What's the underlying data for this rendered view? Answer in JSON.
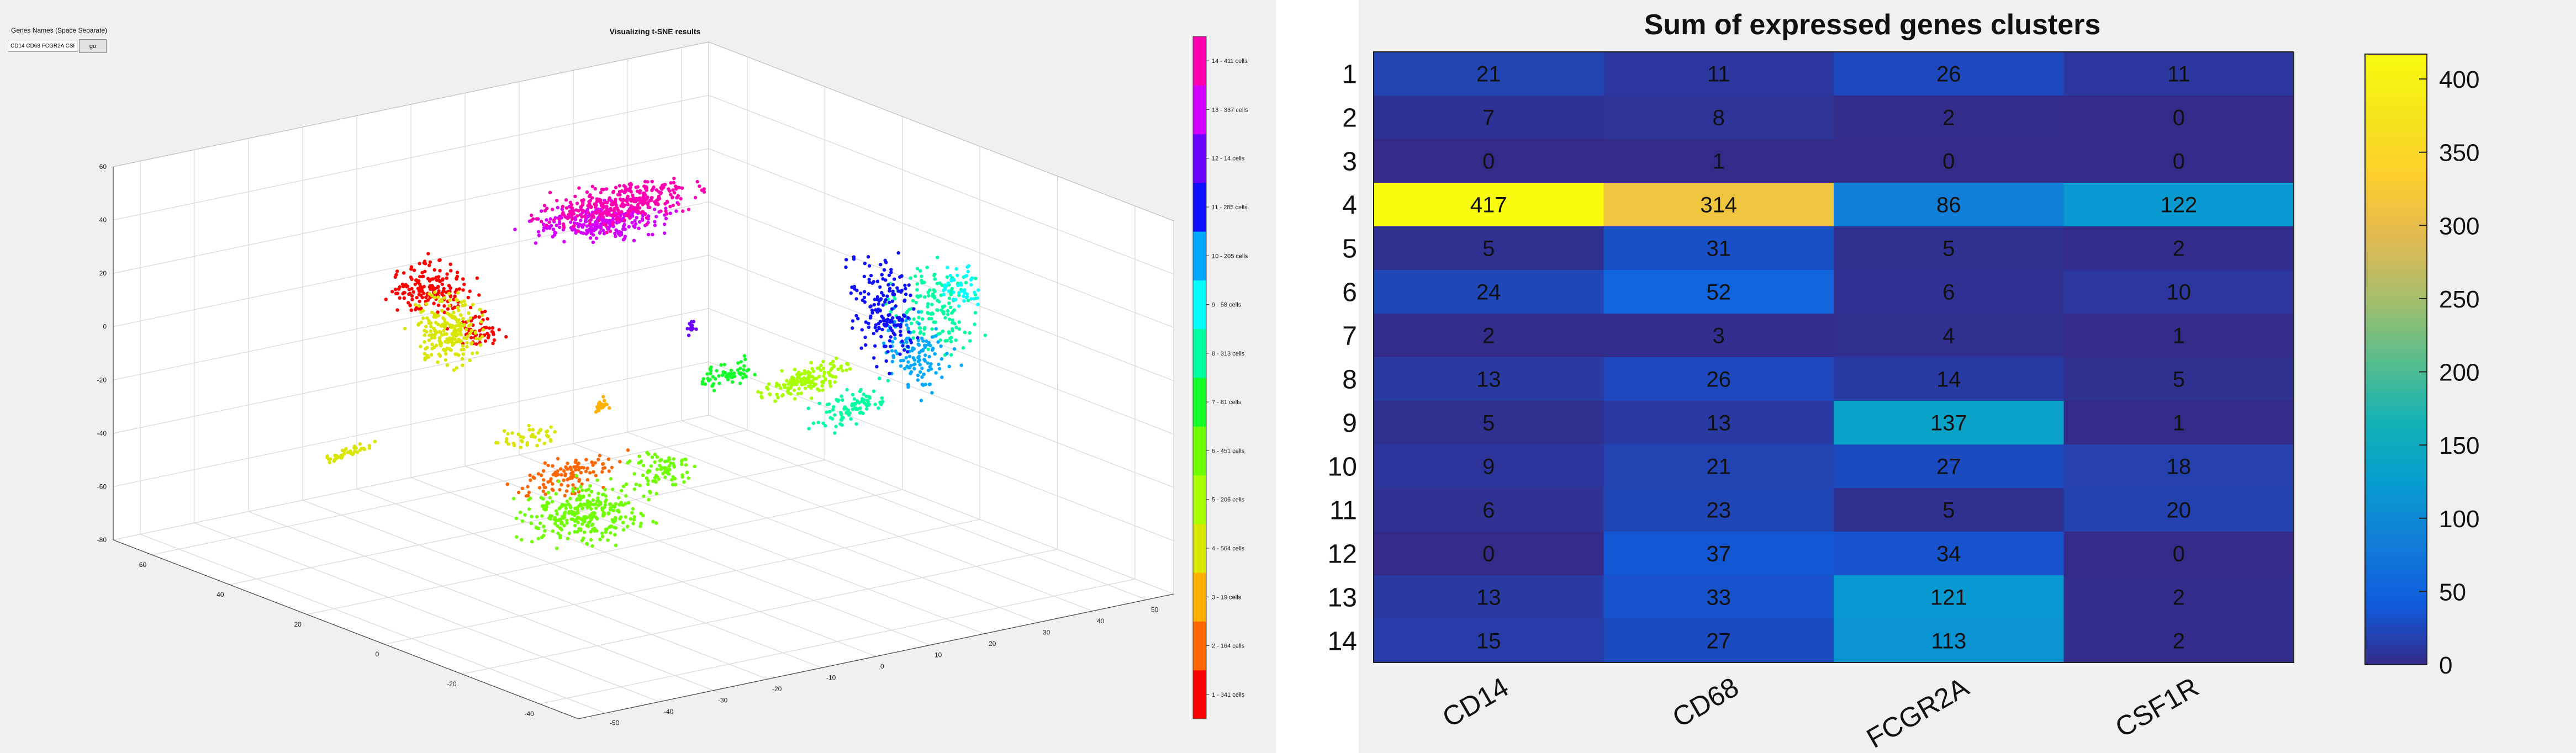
{
  "controls": {
    "gene_names_label": "Genes Names (Space Separate)",
    "gene_input_value": "CD14 CD68 FCGR2A CSF",
    "go_label": "go"
  },
  "chart_data": [
    {
      "type": "scatter",
      "projection": "3d",
      "title": "Visualizing t-SNE results",
      "grid": true,
      "xlim": [
        -60,
        60
      ],
      "ylim": [
        -50,
        50
      ],
      "zlim": [
        -80,
        60
      ],
      "z_ticks": [
        -80,
        -60,
        -40,
        -20,
        0,
        20,
        40,
        60
      ],
      "y_ticks": [
        -40,
        -20,
        0,
        20,
        40,
        60
      ],
      "x_ticks": [
        -50,
        -40,
        -30,
        -20,
        -10,
        0,
        10,
        20,
        30,
        40,
        50
      ],
      "colorbar_labels": [
        "1 - 341 cells",
        "2 - 164 cells",
        "3 - 19 cells",
        "4 - 564 cells",
        "5 - 206 cells",
        "6 - 451 cells",
        "7 - 81 cells",
        "8 - 313 cells",
        "9 - 58 cells",
        "10 - 205 cells",
        "11 - 285 cells",
        "12 - 14 cells",
        "13 - 337 cells",
        "14 - 411 cells"
      ],
      "cluster_colors": [
        "#ff0000",
        "#ff6600",
        "#ffb000",
        "#d8e600",
        "#a8ff00",
        "#70ff00",
        "#14ff2a",
        "#00ffa0",
        "#00ffff",
        "#00a8ff",
        "#1010ff",
        "#6a00ff",
        "#d400ff",
        "#ff00b0"
      ]
    },
    {
      "type": "heatmap",
      "title": "Sum of expressed genes clusters",
      "x_labels": [
        "CD14",
        "CD68",
        "FCGR2A",
        "CSF1R"
      ],
      "y_labels": [
        "1",
        "2",
        "3",
        "4",
        "5",
        "6",
        "7",
        "8",
        "9",
        "10",
        "11",
        "12",
        "13",
        "14"
      ],
      "values": [
        [
          21,
          11,
          26,
          11
        ],
        [
          7,
          8,
          2,
          0
        ],
        [
          0,
          1,
          0,
          0
        ],
        [
          417,
          314,
          86,
          122
        ],
        [
          5,
          31,
          5,
          2
        ],
        [
          24,
          52,
          6,
          10
        ],
        [
          2,
          3,
          4,
          1
        ],
        [
          13,
          26,
          14,
          5
        ],
        [
          5,
          13,
          137,
          1
        ],
        [
          9,
          21,
          27,
          18
        ],
        [
          6,
          23,
          5,
          20
        ],
        [
          0,
          37,
          34,
          0
        ],
        [
          13,
          33,
          121,
          2
        ],
        [
          15,
          27,
          113,
          2
        ]
      ],
      "colorbar_ticks": [
        0,
        50,
        100,
        150,
        200,
        250,
        300,
        350,
        400
      ],
      "clim": [
        0,
        417
      ],
      "colormap": "parula"
    }
  ]
}
